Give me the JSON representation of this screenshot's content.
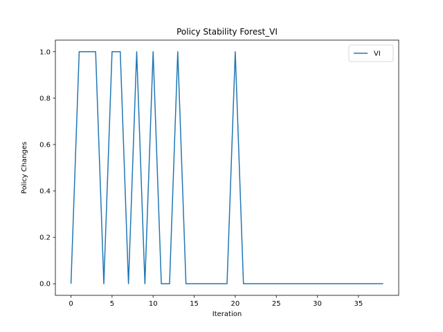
{
  "chart_data": {
    "type": "line",
    "title": "Policy Stability Forest_VI",
    "xlabel": "Iteration",
    "ylabel": "Policy Changes",
    "xlim": [
      -1.9,
      39.9
    ],
    "ylim": [
      -0.05,
      1.05
    ],
    "xticks": [
      0,
      5,
      10,
      15,
      20,
      25,
      30,
      35
    ],
    "yticks": [
      0.0,
      0.2,
      0.4,
      0.6,
      0.8,
      1.0
    ],
    "xtick_labels": [
      "0",
      "5",
      "10",
      "15",
      "20",
      "25",
      "30",
      "35"
    ],
    "ytick_labels": [
      "0.0",
      "0.2",
      "0.4",
      "0.6",
      "0.8",
      "1.0"
    ],
    "grid": false,
    "legend": {
      "position": "upper right"
    },
    "series": [
      {
        "name": "VI",
        "color": "#1f77b4",
        "x": [
          0,
          1,
          2,
          3,
          4,
          5,
          6,
          7,
          8,
          9,
          10,
          11,
          12,
          13,
          14,
          15,
          16,
          17,
          18,
          19,
          20,
          21,
          22,
          23,
          24,
          25,
          26,
          27,
          28,
          29,
          30,
          31,
          32,
          33,
          34,
          35,
          36,
          37,
          38
        ],
        "y": [
          0,
          1,
          1,
          1,
          0,
          1,
          1,
          0,
          1,
          0,
          1,
          0,
          0,
          1,
          0,
          0,
          0,
          0,
          0,
          0,
          1,
          0,
          0,
          0,
          0,
          0,
          0,
          0,
          0,
          0,
          0,
          0,
          0,
          0,
          0,
          0,
          0,
          0,
          0
        ]
      }
    ]
  }
}
